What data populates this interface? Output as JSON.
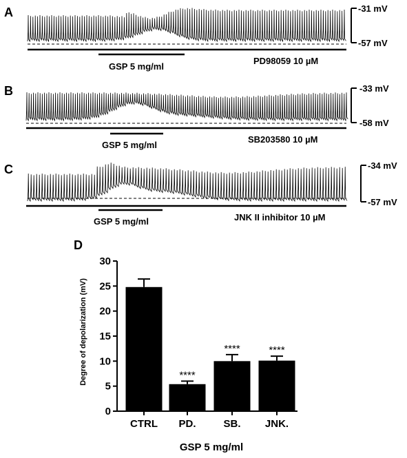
{
  "traces": [
    {
      "panel": "A",
      "upper_label": "-31 mV",
      "lower_label": "-57 mV",
      "drug_label": "PD98059  10 µM",
      "gsp_label": "GSP 5 mg/ml"
    },
    {
      "panel": "B",
      "upper_label": "-33 mV",
      "lower_label": "-58 mV",
      "drug_label": "SB203580  10 µM",
      "gsp_label": "GSP 5 mg/ml"
    },
    {
      "panel": "C",
      "upper_label": "-34 mV",
      "lower_label": "-57 mV",
      "drug_label": "JNK II inhibitor 10 µM",
      "gsp_label": "GSP 5 mg/ml"
    }
  ],
  "chart_data": {
    "panel": "D",
    "type": "bar",
    "categories": [
      "CTRL",
      "PD.",
      "SB.",
      "JNK."
    ],
    "values": [
      24.8,
      5.4,
      10.0,
      10.1
    ],
    "errors": [
      1.6,
      0.6,
      1.3,
      0.9
    ],
    "significance": [
      "",
      "****",
      "****",
      "****"
    ],
    "xlabel": "GSP 5 mg/ml",
    "ylabel": "Degree of depolarization (mV)",
    "ylim": [
      0,
      30
    ],
    "yticks": [
      0,
      5,
      10,
      15,
      20,
      25,
      30
    ],
    "bar_color": "#000000",
    "grid": false
  }
}
